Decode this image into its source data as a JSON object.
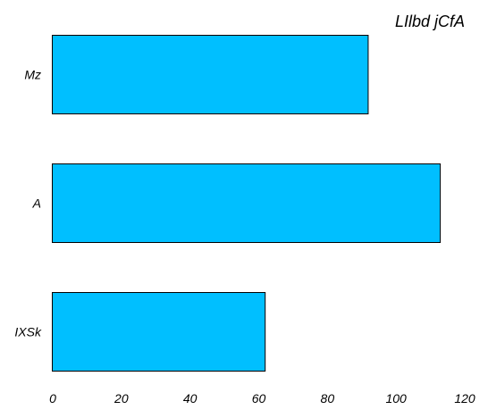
{
  "chart_data": {
    "type": "bar",
    "orientation": "horizontal",
    "title": "LIlbd jCfA",
    "categories": [
      "Mz",
      "A",
      "IXSk"
    ],
    "values": [
      92,
      113,
      62
    ],
    "xlim": [
      0,
      120
    ],
    "x_ticks": [
      "0",
      "20",
      "40",
      "60",
      "80",
      "100",
      "120"
    ],
    "xlabel": "",
    "ylabel": "",
    "grid": false,
    "legend": "none",
    "bar_color": "#00BFFF",
    "bar_edge_color": "#000000"
  }
}
